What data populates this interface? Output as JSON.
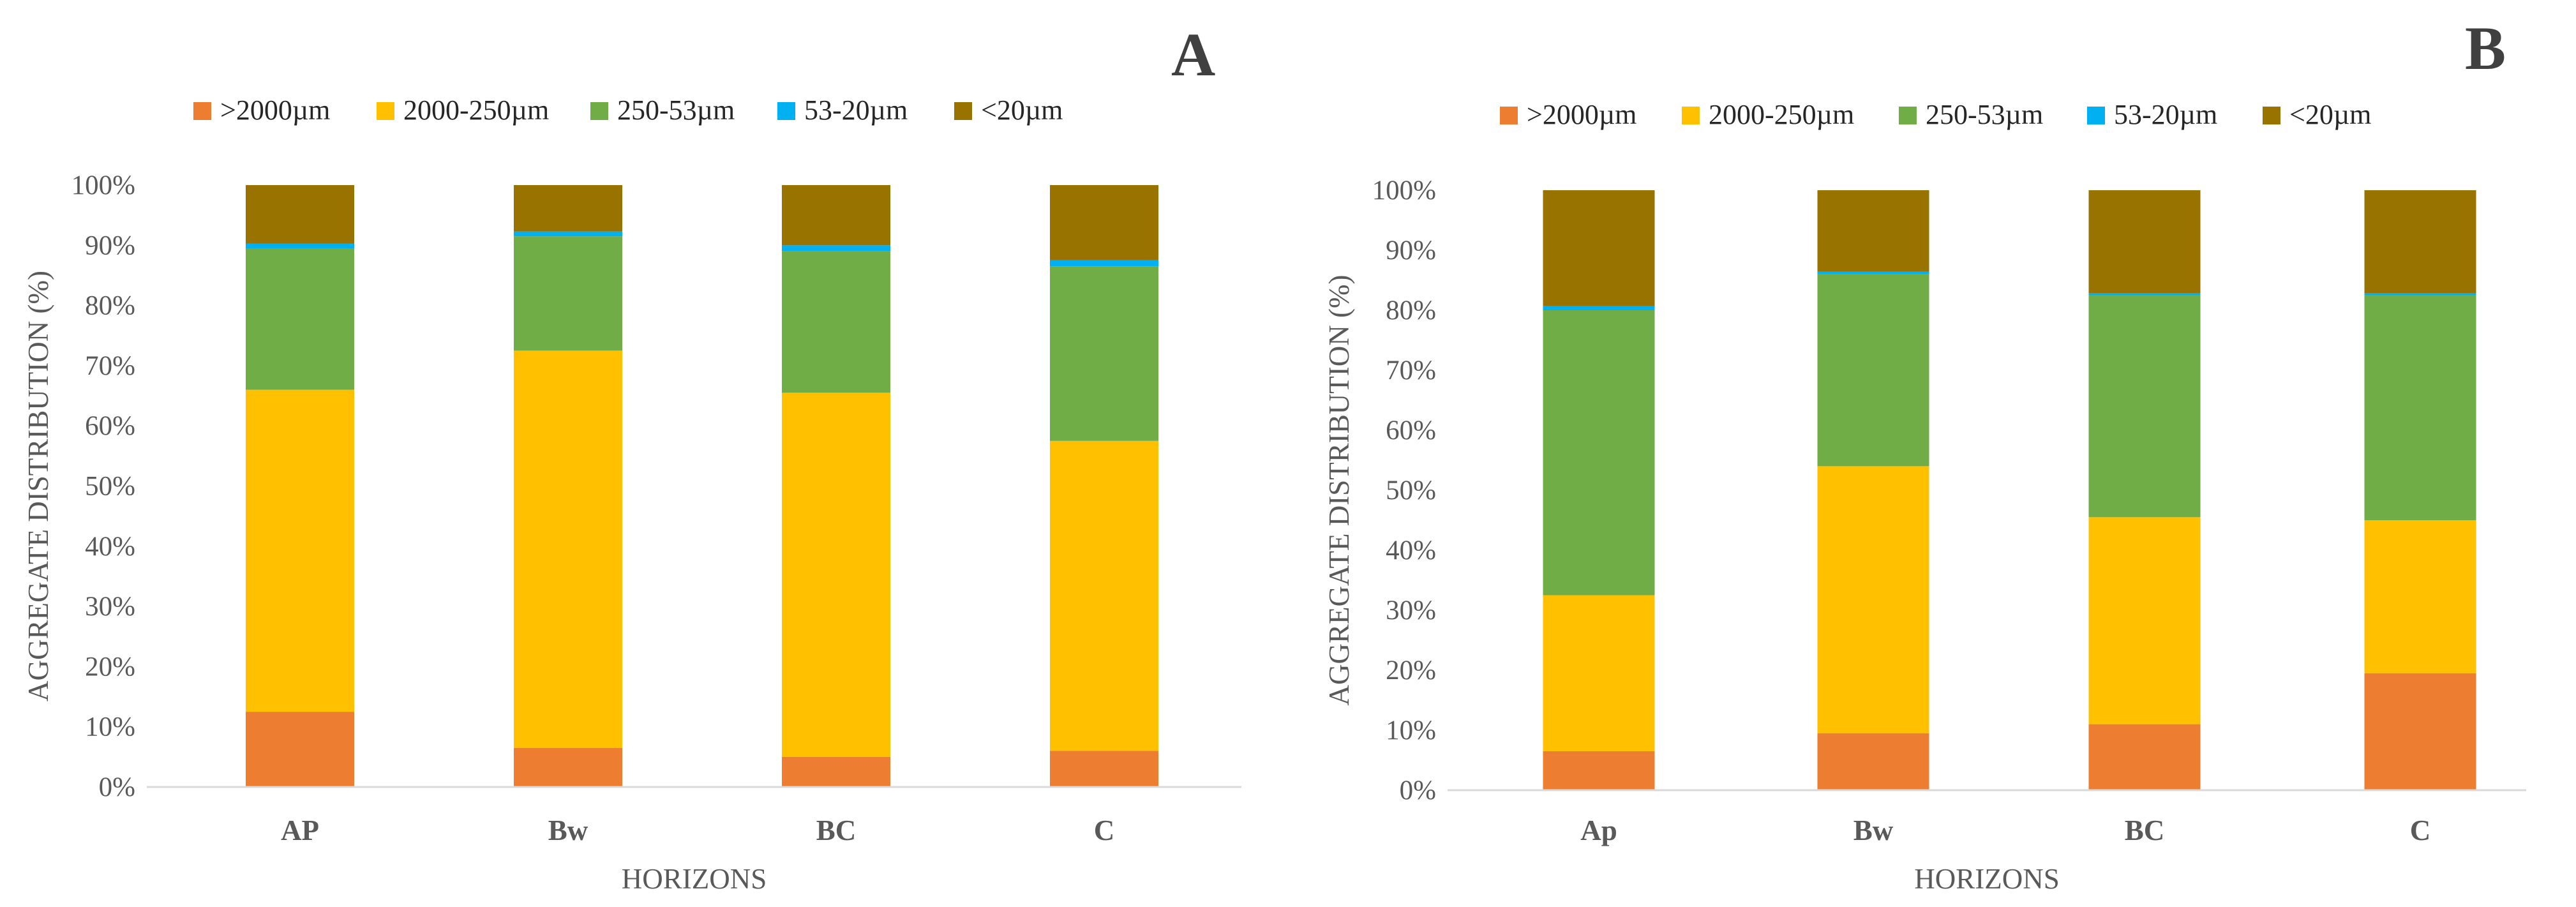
{
  "chart_data": [
    {
      "type": "bar",
      "stacked": true,
      "panel_label": "A",
      "title": "",
      "xlabel": "HORIZONS",
      "ylabel": "AGGREGATE DISTRIBUTION (%)",
      "categories": [
        "AP",
        "Bw",
        "BC",
        "C"
      ],
      "ylim": [
        0,
        100
      ],
      "yticks": [
        "0%",
        "10%",
        "20%",
        "30%",
        "40%",
        "50%",
        "60%",
        "70%",
        "80%",
        "90%",
        "100%"
      ],
      "legend_position": "top",
      "series": [
        {
          "name": ">2000µm",
          "color": "#ED7D31",
          "values": [
            12.5,
            6.5,
            5.0,
            6.0
          ]
        },
        {
          "name": "2000-250µm",
          "color": "#FFC000",
          "values": [
            53.5,
            66.0,
            60.5,
            51.5
          ]
        },
        {
          "name": "250-53µm",
          "color": "#70AD47",
          "values": [
            23.5,
            19.0,
            23.5,
            29.0
          ]
        },
        {
          "name": "53-20µm",
          "color": "#00B0F0",
          "values": [
            0.8,
            0.8,
            1.0,
            1.0
          ]
        },
        {
          "name": "<20µm",
          "color": "#997300",
          "values": [
            9.7,
            7.7,
            10.0,
            12.5
          ]
        }
      ]
    },
    {
      "type": "bar",
      "stacked": true,
      "panel_label": "B",
      "title": "",
      "xlabel": "HORIZONS",
      "ylabel": "AGGREGATE DISTRIBUTION (%)",
      "categories": [
        "Ap",
        "Bw",
        "BC",
        "C"
      ],
      "ylim": [
        0,
        100
      ],
      "yticks": [
        "0%",
        "10%",
        "20%",
        "30%",
        "40%",
        "50%",
        "60%",
        "70%",
        "80%",
        "90%",
        "100%"
      ],
      "legend_position": "top",
      "series": [
        {
          "name": ">2000µm",
          "color": "#ED7D31",
          "values": [
            6.5,
            9.5,
            11.0,
            19.5
          ]
        },
        {
          "name": "2000-250µm",
          "color": "#FFC000",
          "values": [
            26.0,
            44.5,
            34.5,
            25.5
          ]
        },
        {
          "name": "250-53µm",
          "color": "#70AD47",
          "values": [
            47.5,
            32.0,
            37.0,
            37.5
          ]
        },
        {
          "name": "53-20µm",
          "color": "#00B0F0",
          "values": [
            0.7,
            0.4,
            0.3,
            0.3
          ]
        },
        {
          "name": "<20µm",
          "color": "#997300",
          "values": [
            19.3,
            13.6,
            17.2,
            17.2
          ]
        }
      ]
    }
  ]
}
